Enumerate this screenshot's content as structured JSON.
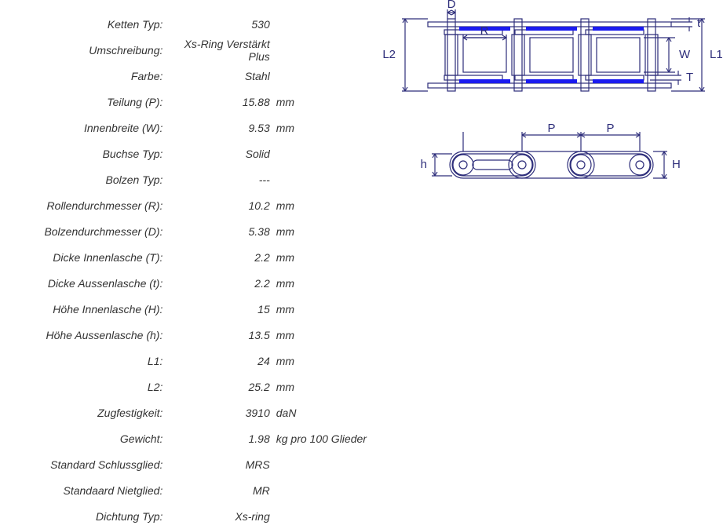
{
  "specs": [
    {
      "label": "Ketten Typ:",
      "value": "530",
      "unit": ""
    },
    {
      "label": "Umschreibung:",
      "value": "Xs-Ring Verstärkt Plus",
      "unit": ""
    },
    {
      "label": "Farbe:",
      "value": "Stahl",
      "unit": ""
    },
    {
      "label": "Teilung (P):",
      "value": "15.88",
      "unit": "mm"
    },
    {
      "label": "Innenbreite (W):",
      "value": "9.53",
      "unit": "mm"
    },
    {
      "label": "Buchse Typ:",
      "value": "Solid",
      "unit": ""
    },
    {
      "label": "Bolzen Typ:",
      "value": "---",
      "unit": ""
    },
    {
      "label": "Rollendurchmesser (R):",
      "value": "10.2",
      "unit": "mm"
    },
    {
      "label": "Bolzendurchmesser (D):",
      "value": "5.38",
      "unit": "mm"
    },
    {
      "label": "Dicke Innenlasche (T):",
      "value": "2.2",
      "unit": "mm"
    },
    {
      "label": "Dicke Aussenlasche (t):",
      "value": "2.2",
      "unit": "mm"
    },
    {
      "label": "Höhe Innenlasche (H):",
      "value": "15",
      "unit": "mm"
    },
    {
      "label": "Höhe Aussenlasche (h):",
      "value": "13.5",
      "unit": "mm"
    },
    {
      "label": "L1:",
      "value": "24",
      "unit": "mm"
    },
    {
      "label": "L2:",
      "value": "25.2",
      "unit": "mm"
    },
    {
      "label": "Zugfestigkeit:",
      "value": "3910",
      "unit": "daN"
    },
    {
      "label": "Gewicht:",
      "value": "1.98",
      "unit": "kg pro 100 Glieder"
    },
    {
      "label": "Standard Schlussglied:",
      "value": "MRS",
      "unit": ""
    },
    {
      "label": "Standaard Nietglied:",
      "value": "MR",
      "unit": ""
    },
    {
      "label": "Dichtung Typ:",
      "value": "Xs-ring",
      "unit": ""
    }
  ],
  "diagram": {
    "line_color": "#2d2d7a",
    "seal_color": "#1a1af0",
    "label_color": "#2d2d7a",
    "font_size": 15,
    "top": {
      "labels": {
        "L1": "L1",
        "L2": "L2",
        "D": "D",
        "R": "R",
        "W": "W",
        "T": "T",
        "t": "t"
      }
    },
    "side": {
      "labels": {
        "P": "P",
        "H": "H",
        "h": "h"
      }
    }
  }
}
